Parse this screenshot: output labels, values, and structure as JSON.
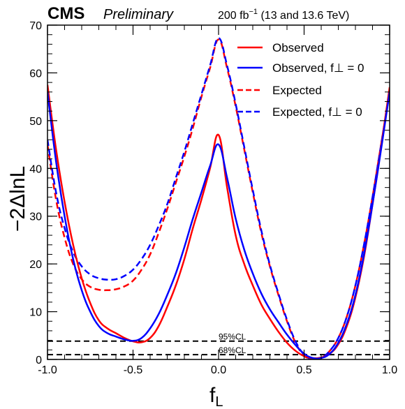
{
  "header": {
    "experiment": "CMS",
    "status": "Preliminary",
    "lumi_value": "200 fb",
    "lumi_exponent": "−1",
    "lumi_energy": " (13 and 13.6 TeV)"
  },
  "chart_data": {
    "type": "line",
    "xlabel": "f",
    "xlabel_sub": "L",
    "ylabel": "−2ΔlnL",
    "xlim": [
      -1.0,
      1.0
    ],
    "ylim": [
      0,
      70
    ],
    "xticks": [
      "-1.0",
      "-0.5",
      "0.0",
      "0.5",
      "1.0"
    ],
    "xtick_values": [
      -1.0,
      -0.5,
      0.0,
      0.5,
      1.0
    ],
    "yticks": [
      "0",
      "10",
      "20",
      "30",
      "40",
      "50",
      "60",
      "70"
    ],
    "ytick_values": [
      0,
      10,
      20,
      30,
      40,
      50,
      60,
      70
    ],
    "legend_position": "top-right",
    "reference_lines": [
      {
        "label": "95%CL",
        "y": 3.84
      },
      {
        "label": "68%CL",
        "y": 1.0
      }
    ],
    "series": [
      {
        "name": "Observed",
        "color": "#ff0000",
        "dashed": false,
        "x": [
          -1.0,
          -0.95,
          -0.9,
          -0.85,
          -0.8,
          -0.75,
          -0.7,
          -0.65,
          -0.6,
          -0.55,
          -0.5,
          -0.45,
          -0.4,
          -0.35,
          -0.3,
          -0.25,
          -0.2,
          -0.15,
          -0.1,
          -0.05,
          0.0,
          0.05,
          0.1,
          0.15,
          0.2,
          0.25,
          0.3,
          0.35,
          0.4,
          0.45,
          0.5,
          0.55,
          0.6,
          0.65,
          0.7,
          0.75,
          0.8,
          0.85,
          0.9,
          0.95,
          1.0
        ],
        "y": [
          57.5,
          44.0,
          33.0,
          24.0,
          17.0,
          11.8,
          8.2,
          6.5,
          5.5,
          4.5,
          3.8,
          3.6,
          4.5,
          7.0,
          11.0,
          15.5,
          21.0,
          27.5,
          33.5,
          40.0,
          47.0,
          36.0,
          26.0,
          20.0,
          15.5,
          11.5,
          8.5,
          5.8,
          3.5,
          1.8,
          0.7,
          0.3,
          0.4,
          1.2,
          3.2,
          7.0,
          13.0,
          21.5,
          32.5,
          44.5,
          57.0
        ]
      },
      {
        "name": "Observed, f⊥ = 0",
        "color": "#0000ff",
        "dashed": false,
        "x": [
          -1.0,
          -0.95,
          -0.9,
          -0.85,
          -0.8,
          -0.75,
          -0.7,
          -0.65,
          -0.6,
          -0.55,
          -0.5,
          -0.45,
          -0.4,
          -0.35,
          -0.3,
          -0.25,
          -0.2,
          -0.15,
          -0.1,
          -0.05,
          0.0,
          0.05,
          0.1,
          0.15,
          0.2,
          0.25,
          0.3,
          0.35,
          0.4,
          0.45,
          0.5,
          0.55,
          0.6,
          0.65,
          0.7,
          0.75,
          0.8,
          0.85,
          0.9,
          0.95,
          1.0
        ],
        "y": [
          56.0,
          41.5,
          30.0,
          21.0,
          14.5,
          10.0,
          7.0,
          5.5,
          4.8,
          4.2,
          3.9,
          4.5,
          6.5,
          9.5,
          13.5,
          18.0,
          23.5,
          29.5,
          35.0,
          40.5,
          45.0,
          38.0,
          29.5,
          23.0,
          18.0,
          13.8,
          10.5,
          7.8,
          5.2,
          3.0,
          1.2,
          0.3,
          0.3,
          1.2,
          3.5,
          7.5,
          13.5,
          22.0,
          32.5,
          44.0,
          56.0
        ]
      },
      {
        "name": "Expected",
        "color": "#ff0000",
        "dashed": true,
        "x": [
          -1.0,
          -0.95,
          -0.9,
          -0.85,
          -0.8,
          -0.75,
          -0.7,
          -0.65,
          -0.6,
          -0.55,
          -0.5,
          -0.45,
          -0.4,
          -0.35,
          -0.3,
          -0.25,
          -0.2,
          -0.15,
          -0.1,
          -0.05,
          0.0,
          0.05,
          0.1,
          0.15,
          0.2,
          0.25,
          0.3,
          0.35,
          0.4,
          0.45,
          0.5,
          0.55,
          0.6,
          0.65,
          0.7,
          0.75,
          0.8,
          0.85,
          0.9,
          0.95,
          1.0
        ],
        "y": [
          45.0,
          33.5,
          25.5,
          20.0,
          16.8,
          15.2,
          14.6,
          14.5,
          14.7,
          15.3,
          16.5,
          18.8,
          22.0,
          26.5,
          31.5,
          37.0,
          42.5,
          48.5,
          55.0,
          61.0,
          67.0,
          61.0,
          53.0,
          44.0,
          35.0,
          26.5,
          19.5,
          13.5,
          8.0,
          3.5,
          0.8,
          0.0,
          0.3,
          1.8,
          4.5,
          9.0,
          15.5,
          24.0,
          34.0,
          45.0,
          56.0
        ]
      },
      {
        "name": "Expected, f⊥ = 0",
        "color": "#0000ff",
        "dashed": true,
        "x": [
          -1.0,
          -0.95,
          -0.9,
          -0.85,
          -0.8,
          -0.75,
          -0.7,
          -0.65,
          -0.6,
          -0.55,
          -0.5,
          -0.45,
          -0.4,
          -0.35,
          -0.3,
          -0.25,
          -0.2,
          -0.15,
          -0.1,
          -0.05,
          0.0,
          0.05,
          0.1,
          0.15,
          0.2,
          0.25,
          0.3,
          0.35,
          0.4,
          0.45,
          0.5,
          0.55,
          0.6,
          0.65,
          0.7,
          0.75,
          0.8,
          0.85,
          0.9,
          0.95,
          1.0
        ],
        "y": [
          46.0,
          35.0,
          27.5,
          22.5,
          19.5,
          17.8,
          17.0,
          16.7,
          16.8,
          17.5,
          18.8,
          21.0,
          24.0,
          28.0,
          32.5,
          38.0,
          43.5,
          49.5,
          55.5,
          61.5,
          67.3,
          61.5,
          53.5,
          44.5,
          35.5,
          27.0,
          19.8,
          13.8,
          8.3,
          3.8,
          1.0,
          0.0,
          0.3,
          1.8,
          4.5,
          9.0,
          15.5,
          24.0,
          34.0,
          45.0,
          56.0
        ]
      }
    ]
  }
}
